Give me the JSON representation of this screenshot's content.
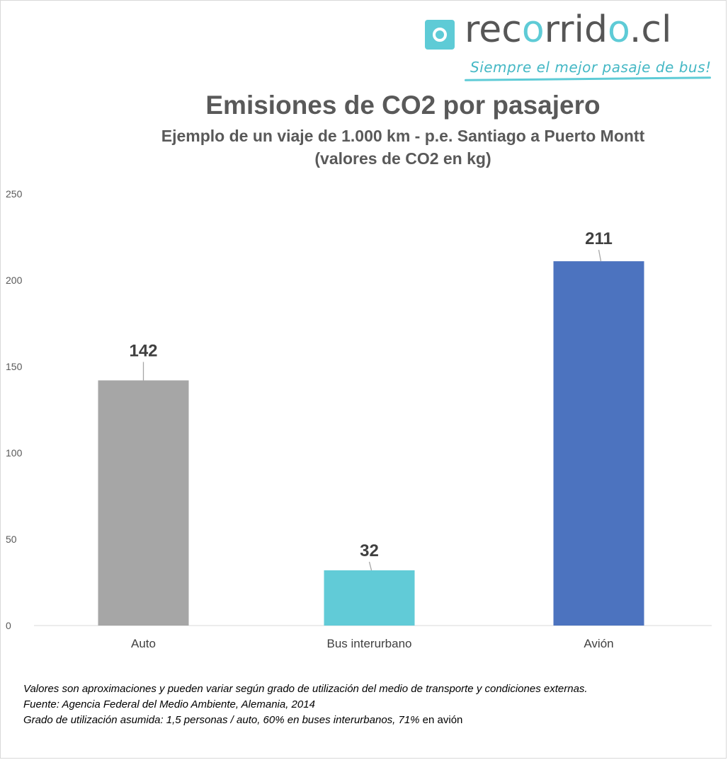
{
  "logo": {
    "name_part1": "rec",
    "name_accent1": "o",
    "name_part2": "rrid",
    "name_accent2": "o",
    "name_part3": ".cl",
    "tagline": "Siempre el mejor pasaje de bus!"
  },
  "colors": {
    "brand": "#5ecbd6",
    "text": "#595959"
  },
  "chart_data": {
    "type": "bar",
    "title": "Emisiones de CO2 por pasajero",
    "subtitle": "Ejemplo de un viaje de 1.000 km - p.e. Santiago a Puerto Montt",
    "subtitle2": "(valores de CO2 en kg)",
    "categories": [
      "Auto",
      "Bus interurbano",
      "Avión"
    ],
    "values": [
      142,
      32,
      211
    ],
    "data_labels": [
      "142",
      "32",
      "211"
    ],
    "bar_colors": [
      "#a6a6a6",
      "#61cbd7",
      "#4c73bf"
    ],
    "ylim": [
      0,
      250
    ],
    "yticks": [
      0,
      50,
      100,
      150,
      200,
      250
    ],
    "grid": false,
    "legend": "none"
  },
  "notes": {
    "line1": "Valores son aproximaciones y pueden variar según grado de utilización del medio de transporte y condiciones externas.",
    "line2": "Fuente: Agencia Federal del Medio Ambiente, Alemania, 2014",
    "line3_italic": "Grado de utilización asumida: 1,5 personas / auto, 60% en buses interurbanos, 71%",
    "line3_rest": " en avión"
  }
}
